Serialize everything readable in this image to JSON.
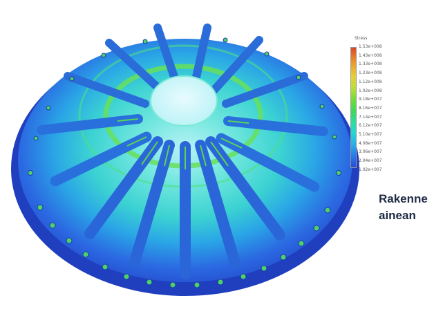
{
  "legend": {
    "title": "Stress",
    "labels": [
      "1.53e+008",
      "1.43e+008",
      "1.33e+008",
      "1.23e+008",
      "1.12e+008",
      "1.02e+008",
      "9.18e+007",
      "8.16e+007",
      "7.14e+007",
      "6.12e+007",
      "5.10e+007",
      "4.08e+007",
      "3.06e+007",
      "2.04e+007",
      "1.02e+007"
    ],
    "colors": {
      "max": "#d8482a",
      "mid": "#3fd85a",
      "min": "#2a4ad8"
    }
  },
  "caption": {
    "line1": "Rakenne",
    "line2": "ainean"
  },
  "model": {
    "name": "stress-simulation-disc",
    "body_color": "#2f62e0",
    "rim_color": "#2344c8",
    "center_color": "#b8f2f5",
    "hot_color": "#67e05a"
  }
}
